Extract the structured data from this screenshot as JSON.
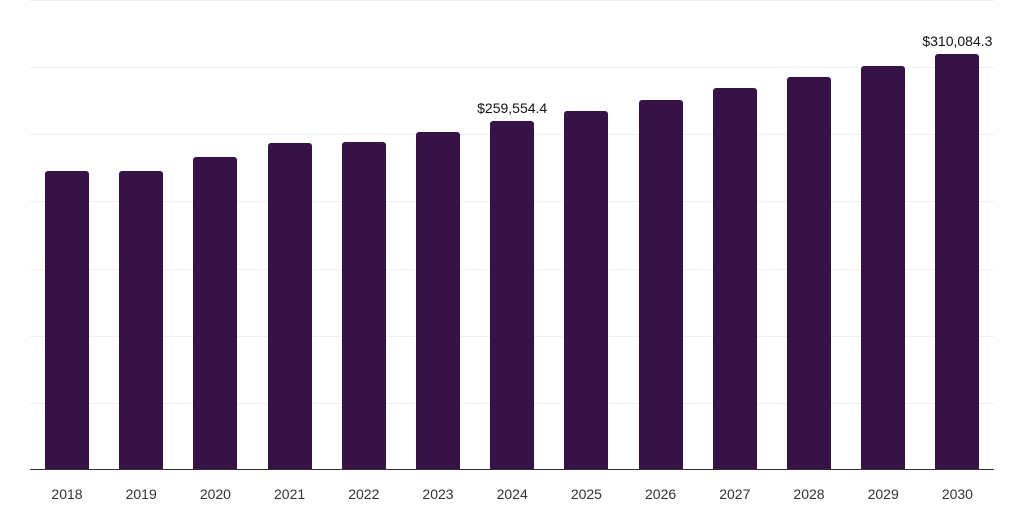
{
  "chart_data": {
    "type": "bar",
    "title": "",
    "xlabel": "",
    "ylabel": "",
    "categories": [
      "2018",
      "2019",
      "2020",
      "2021",
      "2022",
      "2023",
      "2024",
      "2025",
      "2026",
      "2027",
      "2028",
      "2029",
      "2030"
    ],
    "values": [
      222900,
      222900,
      233400,
      243800,
      244600,
      252000,
      259554.4,
      267700,
      275900,
      284100,
      292300,
      301200,
      310084.3
    ],
    "annotations": [
      {
        "category": "2024",
        "label": "$259,554.4"
      },
      {
        "category": "2030",
        "label": "$310,084.3"
      }
    ],
    "ylim": [
      0,
      350000
    ],
    "gridlines": [
      50000,
      100000,
      150000,
      200000,
      250000,
      300000,
      350000
    ],
    "grid": true,
    "legend": null,
    "bar_color": "#371247"
  }
}
